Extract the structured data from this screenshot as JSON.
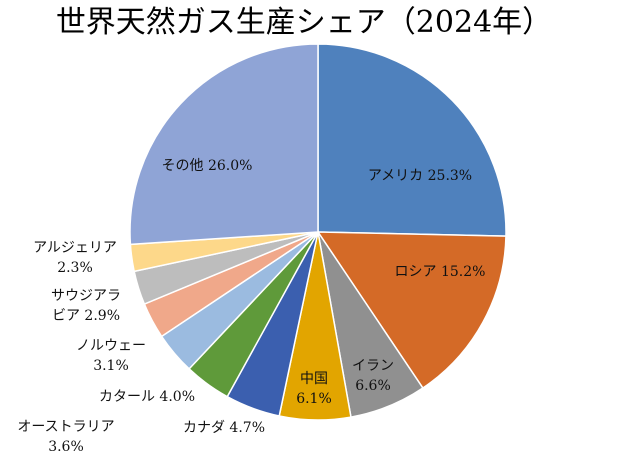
{
  "chart_data": {
    "type": "pie",
    "title": "世界天然ガス生産シェア（2024年）",
    "series": [
      {
        "name": "アメリカ",
        "value": 25.3,
        "label": "アメリカ 25.3%",
        "color": "#4f81bd"
      },
      {
        "name": "ロシア",
        "value": 15.2,
        "label": "ロシア 15.2%",
        "color": "#d46a27"
      },
      {
        "name": "イラン",
        "value": 6.6,
        "label": "イラン\n6.6%",
        "color": "#909090"
      },
      {
        "name": "中国",
        "value": 6.1,
        "label": "中国\n6.1%",
        "color": "#e2a500"
      },
      {
        "name": "カナダ",
        "value": 4.7,
        "label": "カナダ 4.7%",
        "color": "#3b5faf"
      },
      {
        "name": "カタール",
        "value": 4.0,
        "label": "カタール 4.0%",
        "color": "#5f9a3a"
      },
      {
        "name": "オーストラリア",
        "value": 3.6,
        "label": "オーストラリア\n3.6%",
        "color": "#9bbbe0"
      },
      {
        "name": "ノルウェー",
        "value": 3.1,
        "label": "ノルウェー\n3.1%",
        "color": "#f0a88a"
      },
      {
        "name": "サウジアラビア",
        "value": 2.9,
        "label": "サウジアラ\nビア 2.9%",
        "color": "#bdbdbd"
      },
      {
        "name": "アルジェリア",
        "value": 2.3,
        "label": "アルジェリア\n2.3%",
        "color": "#fdd88a"
      },
      {
        "name": "その他",
        "value": 26.0,
        "label": "その他 26.0%",
        "color": "#8fa4d6"
      }
    ]
  }
}
